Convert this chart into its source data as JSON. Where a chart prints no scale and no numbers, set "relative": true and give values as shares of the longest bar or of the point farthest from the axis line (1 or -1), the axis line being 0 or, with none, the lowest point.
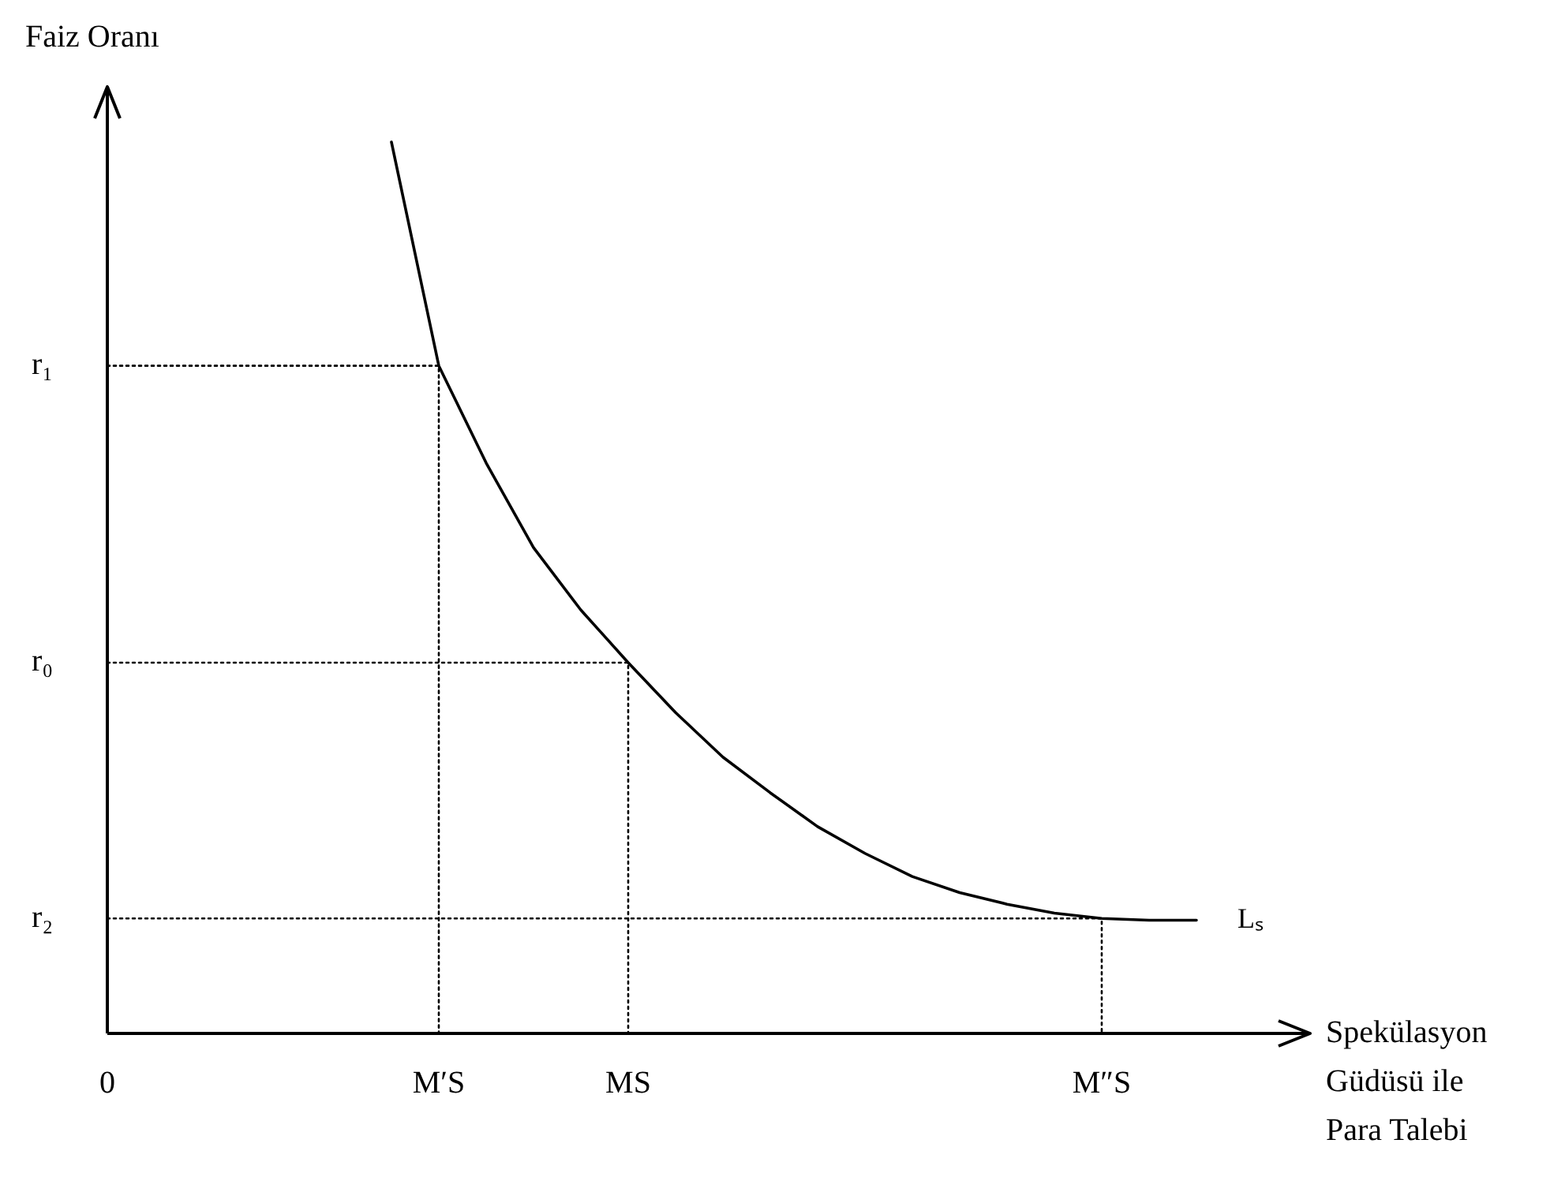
{
  "chart_data": {
    "type": "line",
    "relative": true,
    "tick_labels": "x",
    "ylabel": "Faiz Oranı",
    "xlabel": "Spekülasyon Güdüsü ile Para Talebi",
    "marker": "none",
    "categories": [
      "0",
      null,
      null,
      null,
      null,
      null,
      null,
      "M′S",
      null,
      null,
      null,
      "MS",
      null,
      null,
      null,
      null,
      null,
      null,
      null,
      null,
      null,
      "M″S",
      null,
      null,
      null,
      null
    ],
    "series": [
      {
        "name": "Lₛ",
        "color": "#000000",
        "values": [
          null,
          null,
          null,
          null,
          null,
          null,
          1.0,
          0.749,
          0.64,
          0.545,
          0.475,
          0.416,
          0.36,
          0.31,
          0.27,
          0.232,
          0.202,
          0.176,
          0.158,
          0.145,
          0.135,
          0.129,
          0.127,
          0.127,
          null,
          null
        ]
      },
      {
        "type": "line",
        "line_style": "dotted",
        "color": "#000000",
        "x": [
          "0",
          "M′S",
          "M′S"
        ],
        "values": [
          0.749,
          0.749,
          0
        ]
      },
      {
        "type": "line",
        "line_style": "dotted",
        "color": "#000000",
        "x": [
          "0",
          "MS",
          "MS"
        ],
        "values": [
          0.416,
          0.416,
          0
        ]
      },
      {
        "type": "line",
        "line_style": "dotted",
        "color": "#000000",
        "x": [
          "0",
          "M″S",
          "M″S"
        ],
        "values": [
          0.129,
          0.129,
          0
        ]
      }
    ],
    "annotations": [
      {
        "text": "r₁",
        "x": "0",
        "y": 0.749
      },
      {
        "text": "r₀",
        "x": "0",
        "y": 0.416
      },
      {
        "text": "r₂",
        "x": "0",
        "y": 0.129
      }
    ]
  }
}
